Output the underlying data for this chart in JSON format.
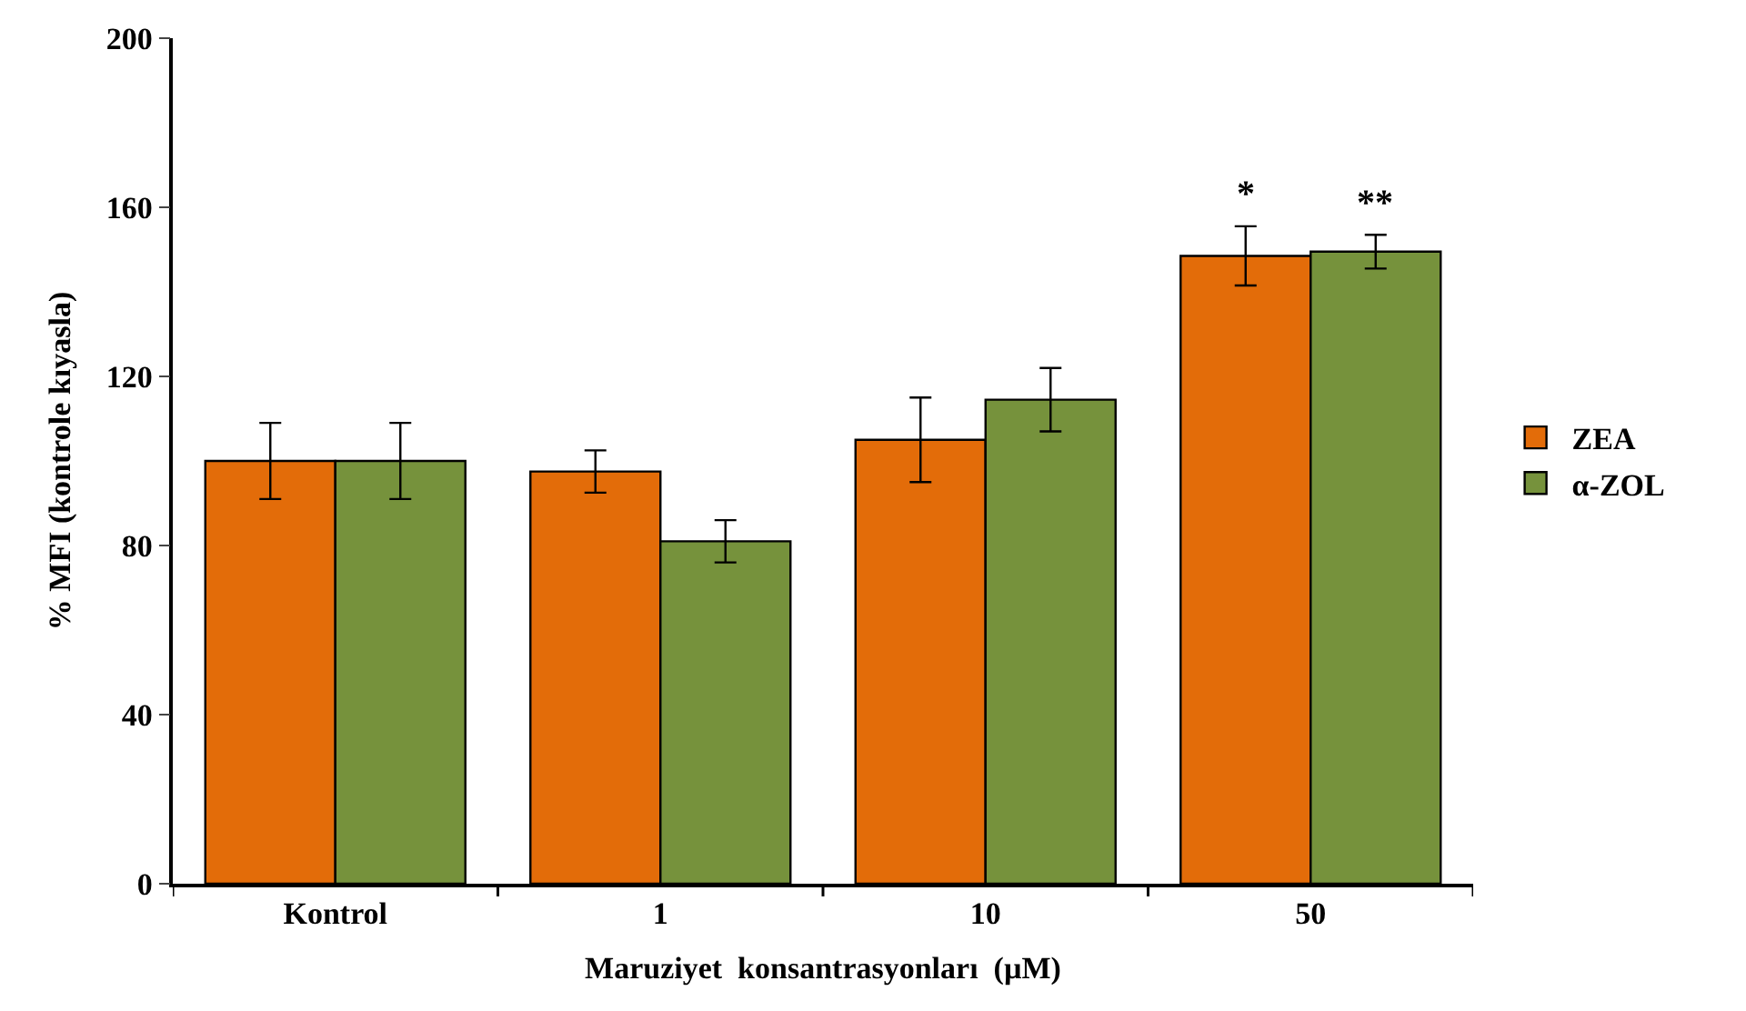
{
  "chart_data": {
    "type": "bar",
    "xlabel": "Maruziyet  konsantrasyonları  (µM)",
    "ylabel": "% MFI (kontrole kıyasla)",
    "categories": [
      "Kontrol",
      "1",
      "10",
      "50"
    ],
    "series": [
      {
        "name": "ZEA",
        "color": "#e36c09",
        "values": [
          100,
          97.5,
          105,
          148.5
        ],
        "errors": [
          9,
          5,
          10,
          7
        ]
      },
      {
        "name": "α-ZOL",
        "color": "#76923c",
        "values": [
          100,
          81,
          114.5,
          149.5
        ],
        "errors": [
          9,
          5,
          7.5,
          4
        ]
      }
    ],
    "annotations": [
      "*",
      "**"
    ],
    "ylim": [
      0,
      200
    ],
    "yticks": [
      0,
      40,
      80,
      120,
      160,
      200
    ],
    "legend": "right"
  }
}
